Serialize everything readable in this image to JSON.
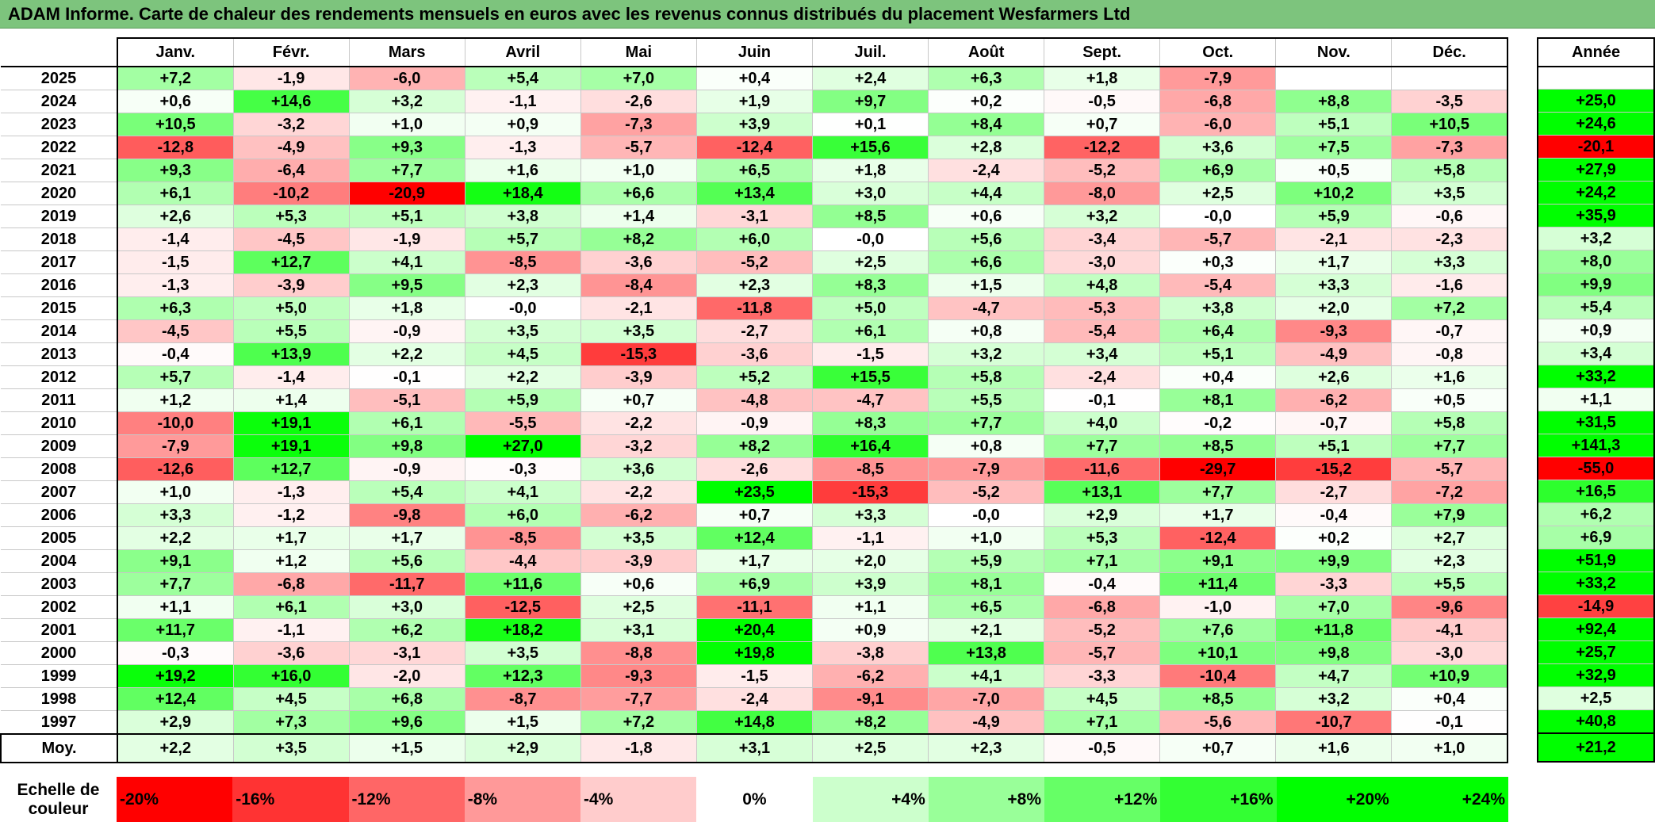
{
  "title": "ADAM Informe. Carte de chaleur des rendements mensuels en euros avec les revenus connus distribués du placement Wesfarmers Ltd",
  "chart_data": {
    "type": "heatmap",
    "title": "ADAM Informe. Carte de chaleur des rendements mensuels en euros avec les revenus connus distribués du placement Wesfarmers Ltd",
    "columns": [
      "Janv.",
      "Févr.",
      "Mars",
      "Avril",
      "Mai",
      "Juin",
      "Juil.",
      "Août",
      "Sept.",
      "Oct.",
      "Nov.",
      "Déc."
    ],
    "year_column": "Année",
    "rows": [
      {
        "year": "2025",
        "months": [
          "+7,2",
          "-1,9",
          "-6,0",
          "+5,4",
          "+7,0",
          "+0,4",
          "+2,4",
          "+6,3",
          "+1,8",
          "-7,9",
          "",
          ""
        ],
        "annual": ""
      },
      {
        "year": "2024",
        "months": [
          "+0,6",
          "+14,6",
          "+3,2",
          "-1,1",
          "-2,6",
          "+1,9",
          "+9,7",
          "+0,2",
          "-0,5",
          "-6,8",
          "+8,8",
          "-3,5"
        ],
        "annual": "+25,0"
      },
      {
        "year": "2023",
        "months": [
          "+10,5",
          "-3,2",
          "+1,0",
          "+0,9",
          "-7,3",
          "+3,9",
          "+0,1",
          "+8,4",
          "+0,7",
          "-6,0",
          "+5,1",
          "+10,5"
        ],
        "annual": "+24,6"
      },
      {
        "year": "2022",
        "months": [
          "-12,8",
          "-4,9",
          "+9,3",
          "-1,3",
          "-5,7",
          "-12,4",
          "+15,6",
          "+2,8",
          "-12,2",
          "+3,6",
          "+7,5",
          "-7,3"
        ],
        "annual": "-20,1"
      },
      {
        "year": "2021",
        "months": [
          "+9,3",
          "-6,4",
          "+7,7",
          "+1,6",
          "+1,0",
          "+6,5",
          "+1,8",
          "-2,4",
          "-5,2",
          "+6,9",
          "+0,5",
          "+5,8"
        ],
        "annual": "+27,9"
      },
      {
        "year": "2020",
        "months": [
          "+6,1",
          "-10,2",
          "-20,9",
          "+18,4",
          "+6,6",
          "+13,4",
          "+3,0",
          "+4,4",
          "-8,0",
          "+2,5",
          "+10,2",
          "+3,5"
        ],
        "annual": "+24,2"
      },
      {
        "year": "2019",
        "months": [
          "+2,6",
          "+5,3",
          "+5,1",
          "+3,8",
          "+1,4",
          "-3,1",
          "+8,5",
          "+0,6",
          "+3,2",
          "-0,0",
          "+5,9",
          "-0,6"
        ],
        "annual": "+35,9"
      },
      {
        "year": "2018",
        "months": [
          "-1,4",
          "-4,5",
          "-1,9",
          "+5,7",
          "+8,2",
          "+6,0",
          "-0,0",
          "+5,6",
          "-3,4",
          "-5,7",
          "-2,1",
          "-2,3"
        ],
        "annual": "+3,2"
      },
      {
        "year": "2017",
        "months": [
          "-1,5",
          "+12,7",
          "+4,1",
          "-8,5",
          "-3,6",
          "-5,2",
          "+2,5",
          "+6,6",
          "-3,0",
          "+0,3",
          "+1,7",
          "+3,3"
        ],
        "annual": "+8,0"
      },
      {
        "year": "2016",
        "months": [
          "-1,3",
          "-3,9",
          "+9,5",
          "+2,3",
          "-8,4",
          "+2,3",
          "+8,3",
          "+1,5",
          "+4,8",
          "-5,4",
          "+3,3",
          "-1,6"
        ],
        "annual": "+9,9"
      },
      {
        "year": "2015",
        "months": [
          "+6,3",
          "+5,0",
          "+1,8",
          "-0,0",
          "-2,1",
          "-11,8",
          "+5,0",
          "-4,7",
          "-5,3",
          "+3,8",
          "+2,0",
          "+7,2"
        ],
        "annual": "+5,4"
      },
      {
        "year": "2014",
        "months": [
          "-4,5",
          "+5,5",
          "-0,9",
          "+3,5",
          "+3,5",
          "-2,7",
          "+6,1",
          "+0,8",
          "-5,4",
          "+6,4",
          "-9,3",
          "-0,7"
        ],
        "annual": "+0,9"
      },
      {
        "year": "2013",
        "months": [
          "-0,4",
          "+13,9",
          "+2,2",
          "+4,5",
          "-15,3",
          "-3,6",
          "-1,5",
          "+3,2",
          "+3,4",
          "+5,1",
          "-4,9",
          "-0,8"
        ],
        "annual": "+3,4"
      },
      {
        "year": "2012",
        "months": [
          "+5,7",
          "-1,4",
          "-0,1",
          "+2,2",
          "-3,9",
          "+5,2",
          "+15,5",
          "+5,8",
          "-2,4",
          "+0,4",
          "+2,6",
          "+1,6"
        ],
        "annual": "+33,2"
      },
      {
        "year": "2011",
        "months": [
          "+1,2",
          "+1,4",
          "-5,1",
          "+5,9",
          "+0,7",
          "-4,8",
          "-4,7",
          "+5,5",
          "-0,1",
          "+8,1",
          "-6,2",
          "+0,5"
        ],
        "annual": "+1,1"
      },
      {
        "year": "2010",
        "months": [
          "-10,0",
          "+19,1",
          "+6,1",
          "-5,5",
          "-2,2",
          "-0,9",
          "+8,3",
          "+7,7",
          "+4,0",
          "-0,2",
          "-0,7",
          "+5,8"
        ],
        "annual": "+31,5"
      },
      {
        "year": "2009",
        "months": [
          "-7,9",
          "+19,1",
          "+9,8",
          "+27,0",
          "-3,2",
          "+8,2",
          "+16,4",
          "+0,8",
          "+7,7",
          "+8,5",
          "+5,1",
          "+7,7"
        ],
        "annual": "+141,3"
      },
      {
        "year": "2008",
        "months": [
          "-12,6",
          "+12,7",
          "-0,9",
          "-0,3",
          "+3,6",
          "-2,6",
          "-8,5",
          "-7,9",
          "-11,6",
          "-29,7",
          "-15,2",
          "-5,7"
        ],
        "annual": "-55,0"
      },
      {
        "year": "2007",
        "months": [
          "+1,0",
          "-1,3",
          "+5,4",
          "+4,1",
          "-2,2",
          "+23,5",
          "-15,3",
          "-5,2",
          "+13,1",
          "+7,7",
          "-2,7",
          "-7,2"
        ],
        "annual": "+16,5"
      },
      {
        "year": "2006",
        "months": [
          "+3,3",
          "-1,2",
          "-9,8",
          "+6,0",
          "-6,2",
          "+0,7",
          "+3,3",
          "-0,0",
          "+2,9",
          "+1,7",
          "-0,4",
          "+7,9"
        ],
        "annual": "+6,2"
      },
      {
        "year": "2005",
        "months": [
          "+2,2",
          "+1,7",
          "+1,7",
          "-8,5",
          "+3,5",
          "+12,4",
          "-1,1",
          "+1,0",
          "+5,3",
          "-12,4",
          "+0,2",
          "+2,7"
        ],
        "annual": "+6,9"
      },
      {
        "year": "2004",
        "months": [
          "+9,1",
          "+1,2",
          "+5,6",
          "-4,4",
          "-3,9",
          "+1,7",
          "+2,0",
          "+5,9",
          "+7,1",
          "+9,1",
          "+9,9",
          "+2,3"
        ],
        "annual": "+51,9"
      },
      {
        "year": "2003",
        "months": [
          "+7,7",
          "-6,8",
          "-11,7",
          "+11,6",
          "+0,6",
          "+6,9",
          "+3,9",
          "+8,1",
          "-0,4",
          "+11,4",
          "-3,3",
          "+5,5"
        ],
        "annual": "+33,2"
      },
      {
        "year": "2002",
        "months": [
          "+1,1",
          "+6,1",
          "+3,0",
          "-12,5",
          "+2,5",
          "-11,1",
          "+1,1",
          "+6,5",
          "-6,8",
          "-1,0",
          "+7,0",
          "-9,6"
        ],
        "annual": "-14,9"
      },
      {
        "year": "2001",
        "months": [
          "+11,7",
          "-1,1",
          "+6,2",
          "+18,2",
          "+3,1",
          "+20,4",
          "+0,9",
          "+2,1",
          "-5,2",
          "+7,6",
          "+11,8",
          "-4,1"
        ],
        "annual": "+92,4"
      },
      {
        "year": "2000",
        "months": [
          "-0,3",
          "-3,6",
          "-3,1",
          "+3,5",
          "-8,8",
          "+19,8",
          "-3,8",
          "+13,8",
          "-5,7",
          "+10,1",
          "+9,8",
          "-3,0"
        ],
        "annual": "+25,7"
      },
      {
        "year": "1999",
        "months": [
          "+19,2",
          "+16,0",
          "-2,0",
          "+12,3",
          "-9,3",
          "-1,5",
          "-6,2",
          "+4,1",
          "-3,3",
          "-10,4",
          "+4,7",
          "+10,9"
        ],
        "annual": "+32,9"
      },
      {
        "year": "1998",
        "months": [
          "+12,4",
          "+4,5",
          "+6,8",
          "-8,7",
          "-7,7",
          "-2,4",
          "-9,1",
          "-7,0",
          "+4,5",
          "+8,5",
          "+3,2",
          "+0,4"
        ],
        "annual": "+2,5"
      },
      {
        "year": "1997",
        "months": [
          "+2,9",
          "+7,3",
          "+9,6",
          "+1,5",
          "+7,2",
          "+14,8",
          "+8,2",
          "-4,9",
          "+7,1",
          "-5,6",
          "-10,7",
          "-0,1"
        ],
        "annual": "+40,8"
      }
    ],
    "average": {
      "label": "Moy.",
      "months": [
        "+2,2",
        "+3,5",
        "+1,5",
        "+2,9",
        "-1,8",
        "+3,1",
        "+2,5",
        "+2,3",
        "-0,5",
        "+0,7",
        "+1,6",
        "+1,0"
      ],
      "annual": "+21,2"
    },
    "scale": {
      "label_line1": "Echelle de",
      "label_line2": "couleur",
      "steps": [
        "-20%",
        "-16%",
        "-12%",
        "-8%",
        "-4%",
        "0%",
        "+4%",
        "+8%",
        "+12%",
        "+16%",
        "+20%",
        "+24%"
      ]
    }
  },
  "colors": {
    "title_bg": "#7dc47d",
    "negative_max": "#ff0000",
    "neutral": "#ffffff",
    "positive_max": "#00ff00"
  }
}
